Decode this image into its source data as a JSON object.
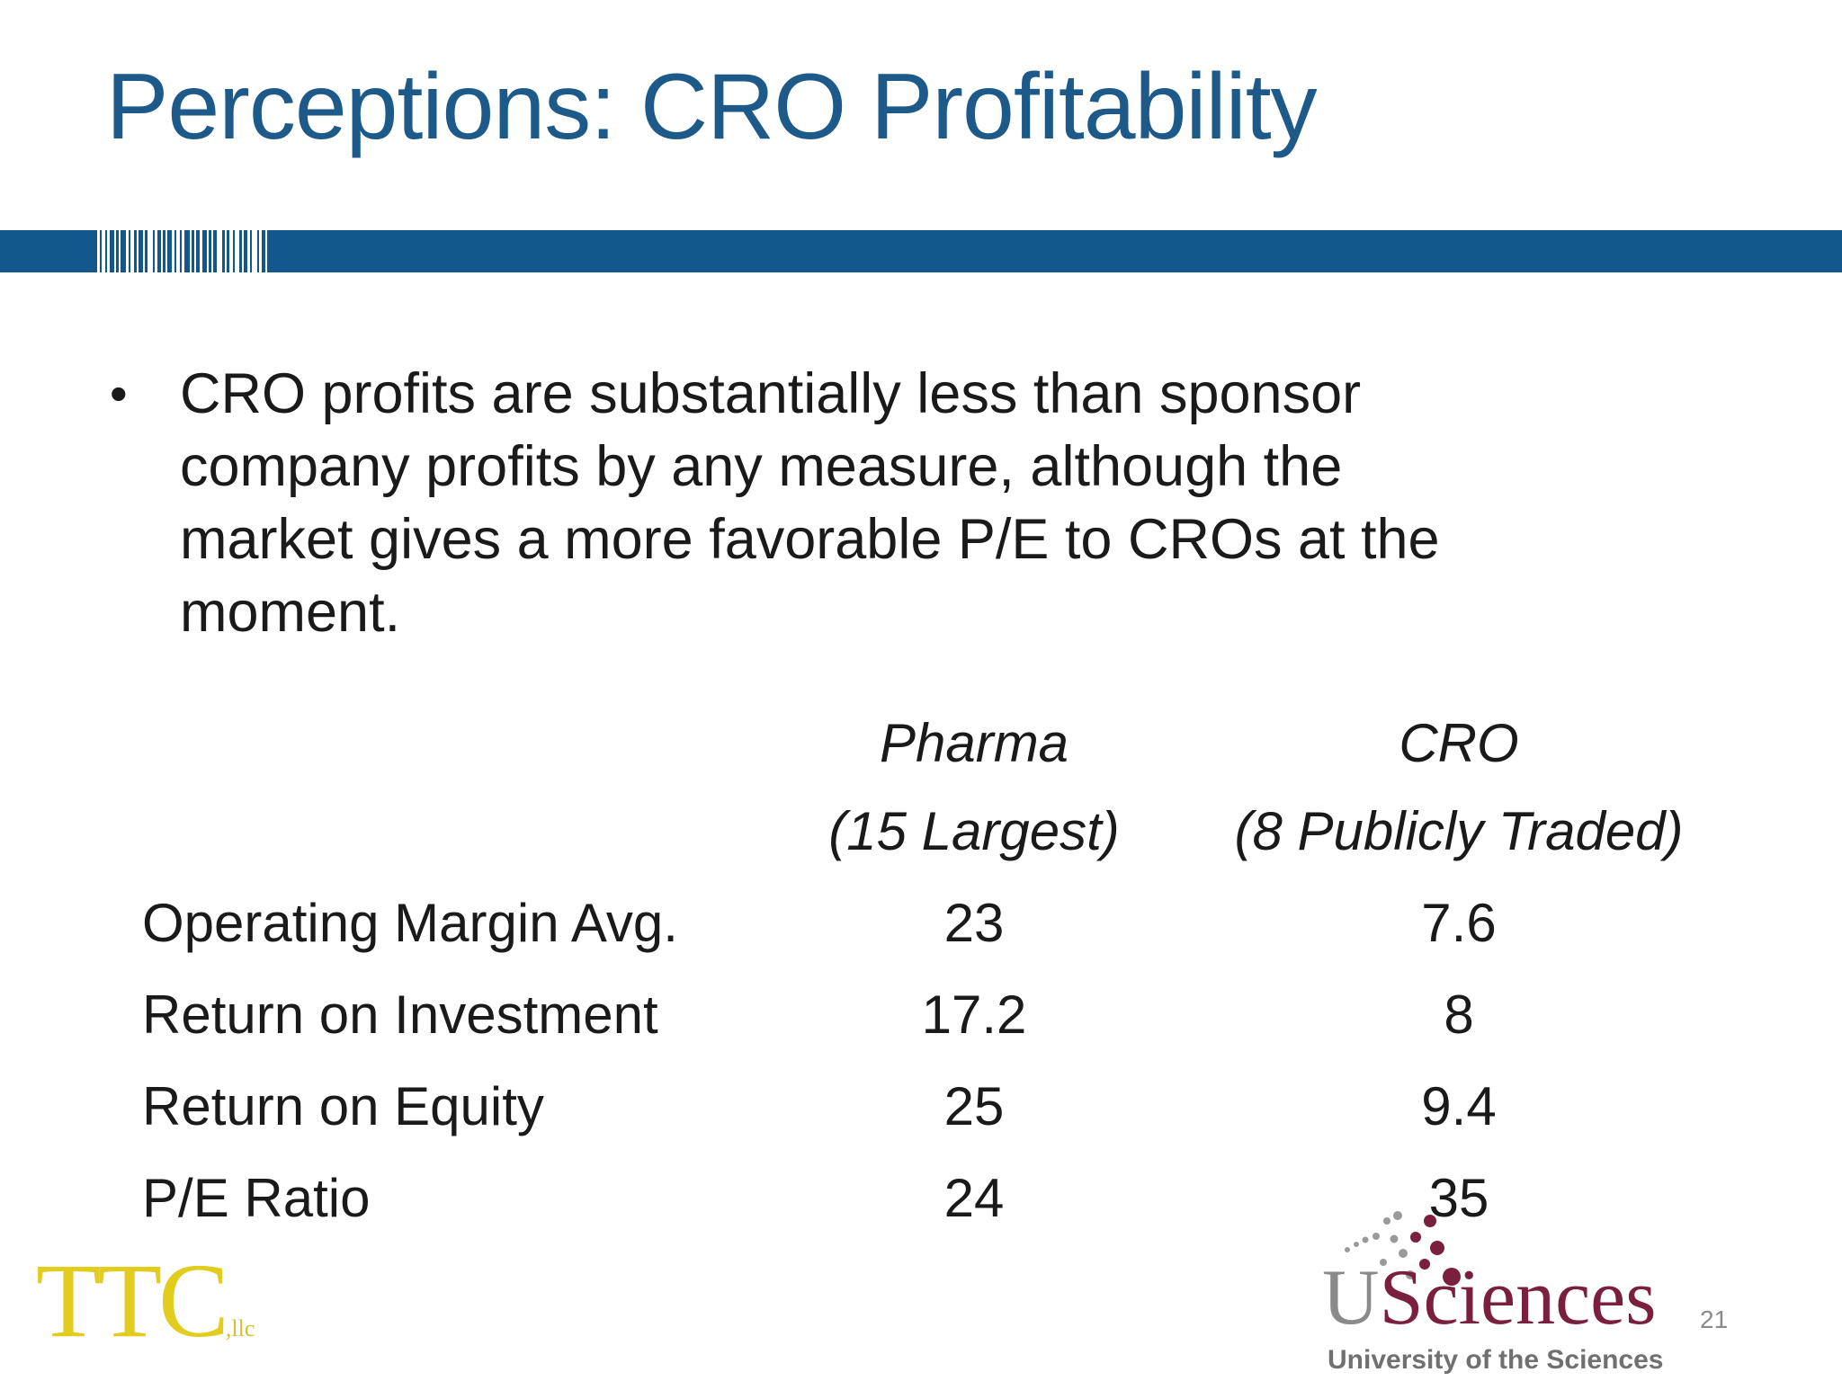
{
  "slide": {
    "title": "Perceptions: CRO Profitability",
    "bullet": "CRO profits are substantially less than sponsor company profits by any measure, although the market gives a more favorable P/E to CROs at the moment.",
    "page_number": "21"
  },
  "table": {
    "columns": [
      {
        "name": "Pharma",
        "sub": "(15 Largest)"
      },
      {
        "name": "CRO",
        "sub": "(8 Publicly Traded)"
      }
    ],
    "rows": [
      {
        "label": "Operating Margin Avg.",
        "pharma": "23",
        "cro": "7.6"
      },
      {
        "label": "Return on Investment",
        "pharma": "17.2",
        "cro": "8"
      },
      {
        "label": "Return on Equity",
        "pharma": "25",
        "cro": "9.4"
      },
      {
        "label": "P/E Ratio",
        "pharma": "24",
        "cro": "35"
      }
    ]
  },
  "logos": {
    "left": {
      "main": "TTC",
      "suffix": ",llc",
      "color": "#e2cc1e"
    },
    "right": {
      "u": "U",
      "rest": "Sciences",
      "sub": "University of the Sciences",
      "color": "#7a1f3d"
    }
  },
  "colors": {
    "title": "#1d5a8a",
    "band": "#13588c"
  }
}
